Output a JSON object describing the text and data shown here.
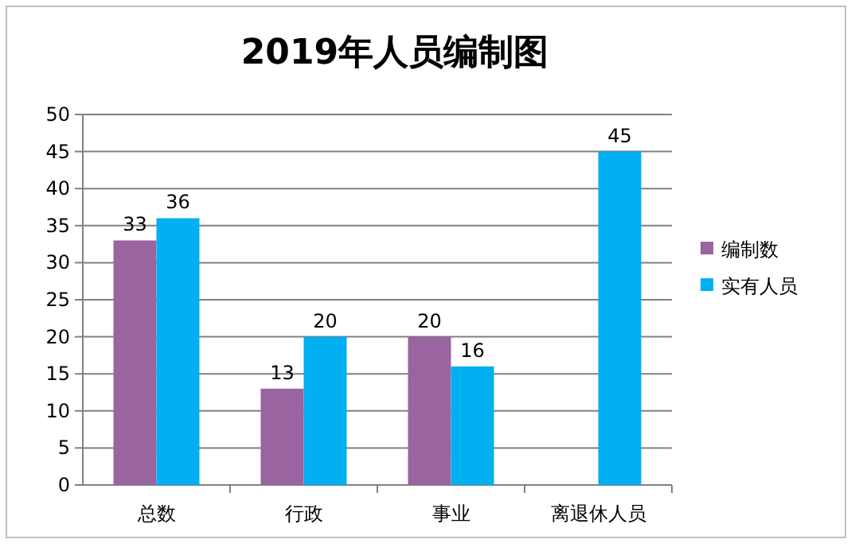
{
  "chart_data": {
    "type": "bar",
    "title": "2019年人员编制图",
    "categories": [
      "总数",
      "行政",
      "事业",
      "离退休人员"
    ],
    "series": [
      {
        "name": "编制数",
        "color": "#9a64a0",
        "values": [
          33,
          13,
          20,
          null
        ]
      },
      {
        "name": "实有人员",
        "color": "#00b0f0",
        "values": [
          36,
          20,
          16,
          45
        ]
      }
    ],
    "ylim": [
      0,
      50
    ],
    "yticks": [
      0,
      5,
      10,
      15,
      20,
      25,
      30,
      35,
      40,
      45,
      50
    ],
    "grid": "y",
    "legend": "right",
    "data_labels": true
  }
}
